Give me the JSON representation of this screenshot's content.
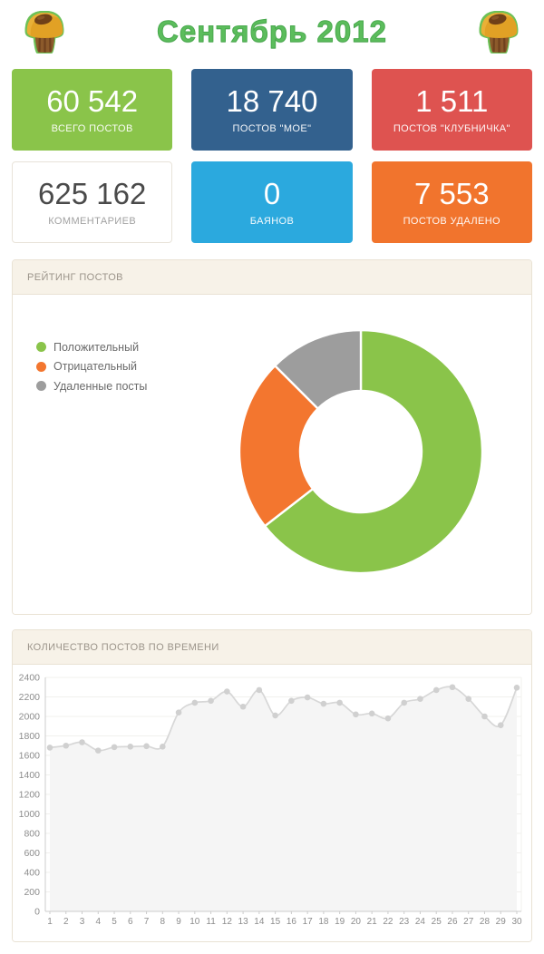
{
  "header": {
    "title": "Сентябрь 2012"
  },
  "icons": {
    "left": "muffin-icon",
    "right": "muffin-icon"
  },
  "cards": [
    {
      "value": "60 542",
      "label": "ВСЕГО ПОСТОВ",
      "color": "#8AC44A",
      "text_color": "#FFFFFF"
    },
    {
      "value": "18 740",
      "label": "ПОСТОВ \"МОЕ\"",
      "color": "#33618E",
      "text_color": "#FFFFFF"
    },
    {
      "value": "1 511",
      "label": "ПОСТОВ \"КЛУБНИЧКА\"",
      "color": "#DE5350",
      "text_color": "#FFFFFF"
    },
    {
      "value": "625 162",
      "label": "КОММЕНТАРИЕВ",
      "color": "#FFFFFF",
      "text_color": "#4A4A4A",
      "border": "#E8E3D9",
      "label_color": "#9C9C9C"
    },
    {
      "value": "0",
      "label": "БАЯНОВ",
      "color": "#2BA9DE",
      "text_color": "#FFFFFF"
    },
    {
      "value": "7 553",
      "label": "ПОСТОВ УДАЛЕНО",
      "color": "#F1742D",
      "text_color": "#FFFFFF"
    }
  ],
  "panels": {
    "rating": {
      "title": "РЕЙТИНГ ПОСТОВ"
    },
    "timeline": {
      "title": "КОЛИЧЕСТВО ПОСТОВ ПО ВРЕМЕНИ"
    }
  },
  "chart_data": [
    {
      "type": "pie",
      "title": "РЕЙТИНГ ПОСТОВ",
      "donut": true,
      "legend_position": "left-top",
      "slices": [
        {
          "label": "Положительный",
          "value": 64.5,
          "color": "#8AC44A"
        },
        {
          "label": "Отрицательный",
          "value": 23.0,
          "color": "#F3762F"
        },
        {
          "label": "Удаленные посты",
          "value": 12.5,
          "color": "#9D9D9D"
        }
      ]
    },
    {
      "type": "line",
      "title": "КОЛИЧЕСТВО ПОСТОВ ПО ВРЕМЕНИ",
      "x": [
        1,
        2,
        3,
        4,
        5,
        6,
        7,
        8,
        9,
        10,
        11,
        12,
        13,
        14,
        15,
        16,
        17,
        18,
        19,
        20,
        21,
        22,
        23,
        24,
        25,
        26,
        27,
        28,
        29,
        30
      ],
      "values": [
        1680,
        1700,
        1735,
        1650,
        1685,
        1690,
        1695,
        1690,
        2040,
        2140,
        2160,
        2255,
        2100,
        2270,
        2010,
        2160,
        2195,
        2130,
        2140,
        2020,
        2030,
        1980,
        2140,
        2180,
        2270,
        2300,
        2180,
        2000,
        1910,
        2295
      ],
      "ylim": [
        0,
        2400
      ],
      "ytick_step": 200,
      "grid": true,
      "legend_position": "none",
      "style": {
        "line_color": "#D7D7D7",
        "marker_color": "#D0D0D0",
        "area_color": "#F5F5F5",
        "grid_color": "#F1F0ED",
        "axis_color": "#CCCCCC",
        "label_color": "#8C8C8C"
      }
    }
  ]
}
